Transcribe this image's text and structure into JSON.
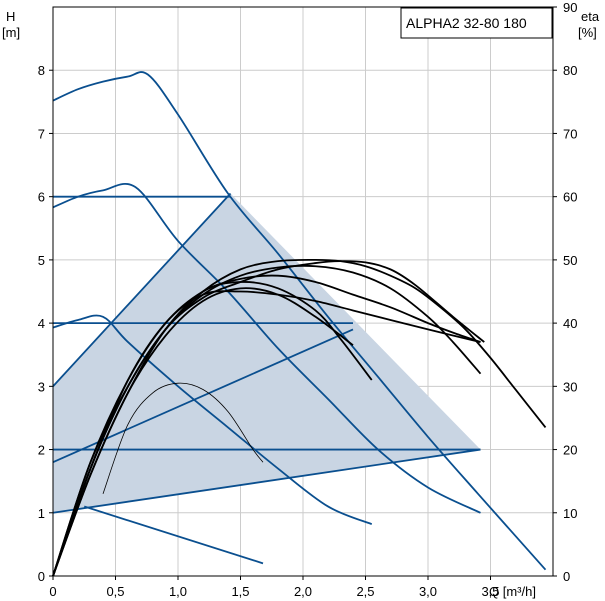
{
  "chart_data": {
    "type": "line",
    "title": "ALPHA2 32-80 180",
    "x_axis": {
      "label": "Q [m³/h]",
      "min": 0,
      "max": 4,
      "ticks": [
        "0",
        "0,5",
        "1,0",
        "1,5",
        "2,0",
        "2,5",
        "3,0",
        "3,5"
      ]
    },
    "y_left": {
      "label": "H",
      "unit": "[m]",
      "min": 0,
      "max": 9,
      "ticks": [
        "0",
        "1",
        "2",
        "3",
        "4",
        "5",
        "6",
        "7",
        "8"
      ]
    },
    "y_right": {
      "label": "eta",
      "unit": "[%]",
      "min": 0,
      "max": 90,
      "ticks": [
        "0",
        "10",
        "20",
        "30",
        "40",
        "50",
        "60",
        "70",
        "80",
        "90"
      ]
    },
    "grid": true,
    "colors": {
      "curve": "#0a4f8f",
      "eta": "#000000",
      "area": "#c9d5e3",
      "grid": "#cccccc"
    },
    "regions": [
      {
        "points": [
          [
            0,
            1
          ],
          [
            3.42,
            2
          ],
          [
            1.42,
            6.05
          ],
          [
            0,
            3
          ]
        ]
      }
    ],
    "control_lines": [
      {
        "x": [
          0,
          1.42
        ],
        "y": [
          6,
          6
        ]
      },
      {
        "x": [
          0,
          2.4
        ],
        "y": [
          4,
          4
        ]
      },
      {
        "x": [
          0,
          3.42
        ],
        "y": [
          2,
          2
        ]
      },
      {
        "x": [
          0,
          1.42
        ],
        "y": [
          3,
          6.05
        ]
      },
      {
        "x": [
          0,
          2.4
        ],
        "y": [
          1.8,
          3.9
        ]
      },
      {
        "x": [
          0,
          3.42
        ],
        "y": [
          1,
          2
        ]
      },
      {
        "x": [
          0.25,
          1.68
        ],
        "y": [
          1.1,
          0.2
        ]
      }
    ],
    "pump_curves": [
      {
        "x": [
          0,
          0.2,
          0.4,
          0.6,
          0.76,
          1.0,
          1.4,
          1.8,
          2.2,
          2.6,
          3.0,
          3.4,
          3.94
        ],
        "y": [
          7.52,
          7.7,
          7.82,
          7.9,
          7.93,
          7.3,
          6.05,
          5.1,
          4.1,
          3.15,
          2.2,
          1.3,
          0.1
        ]
      },
      {
        "x": [
          0,
          0.2,
          0.4,
          0.66,
          1.0,
          1.4,
          1.8,
          2.2,
          2.6,
          3.0,
          3.42
        ],
        "y": [
          5.83,
          6.0,
          6.1,
          6.15,
          5.3,
          4.5,
          3.6,
          2.8,
          2.0,
          1.4,
          1.0
        ]
      },
      {
        "x": [
          0,
          0.2,
          0.4,
          0.6,
          1.0,
          1.4,
          1.8,
          2.2,
          2.55
        ],
        "y": [
          3.93,
          4.05,
          4.1,
          3.7,
          3.0,
          2.35,
          1.7,
          1.1,
          0.82
        ]
      }
    ],
    "eta_curves": [
      {
        "x": [
          0,
          0.3,
          0.6,
          0.9,
          1.2,
          1.5,
          1.8,
          2.1,
          2.3,
          2.5,
          2.7,
          2.9,
          3.2,
          3.45
        ],
        "y": [
          0,
          18,
          30,
          39,
          44,
          46.5,
          48.5,
          49.5,
          49.8,
          49.6,
          48.5,
          46,
          41,
          37
        ]
      },
      {
        "x": [
          0,
          0.3,
          0.6,
          0.9,
          1.2,
          1.5,
          1.8,
          2.1,
          2.3,
          2.5,
          2.7,
          2.9,
          3.1,
          3.3,
          3.5,
          3.7,
          3.94
        ],
        "y": [
          0,
          16,
          29,
          39,
          45,
          48.5,
          49.8,
          50,
          49.8,
          49,
          47.5,
          45.5,
          42.5,
          39,
          34.5,
          29.5,
          23.5
        ]
      },
      {
        "x": [
          0,
          0.3,
          0.6,
          0.9,
          1.2,
          1.5,
          1.8,
          2.1,
          2.4,
          2.7,
          3.0,
          3.2,
          3.42
        ],
        "y": [
          0,
          17,
          30,
          39,
          44.5,
          47.5,
          48.8,
          49,
          48,
          45.5,
          41,
          37,
          32
        ]
      },
      {
        "x": [
          0,
          0.3,
          0.6,
          0.9,
          1.2,
          1.5,
          1.8,
          2.1,
          2.4,
          2.7,
          3.0,
          3.2,
          3.42
        ],
        "y": [
          0,
          18,
          31,
          40,
          45,
          47,
          47.5,
          46.5,
          44.5,
          42.5,
          40,
          38.5,
          37
        ]
      },
      {
        "x": [
          0,
          0.3,
          0.6,
          0.9,
          1.2,
          1.5,
          1.8,
          2.1,
          2.3,
          2.55
        ],
        "y": [
          0,
          17,
          30,
          39,
          45,
          46.5,
          45.5,
          42,
          37.5,
          31
        ]
      },
      {
        "x": [
          0,
          0.3,
          0.6,
          0.9,
          1.2,
          1.5,
          1.8,
          2.1,
          2.4
        ],
        "y": [
          0,
          16,
          29,
          38,
          43.5,
          45.5,
          44.5,
          41,
          36.5
        ]
      },
      {
        "x": [
          0,
          0.3,
          0.6,
          0.9,
          1.2,
          1.5,
          1.8,
          2.1,
          2.4,
          2.7,
          3.0,
          3.42
        ],
        "y": [
          0,
          17,
          31,
          40,
          44.5,
          45,
          44.5,
          43.5,
          42,
          40.5,
          39,
          37
        ]
      },
      {
        "x": [
          0.4,
          0.6,
          0.8,
          1.0,
          1.2,
          1.4,
          1.6,
          1.68
        ],
        "y": [
          13,
          24,
          29,
          30.5,
          29.5,
          26,
          20,
          18
        ]
      }
    ]
  }
}
